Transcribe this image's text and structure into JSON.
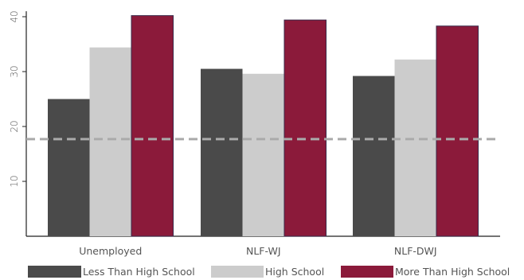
{
  "chart_data": {
    "type": "bar",
    "title": "",
    "xlabel": "",
    "ylabel": "",
    "categories": [
      "Unemployed",
      "NLF-WJ",
      "NLF-DWJ"
    ],
    "series": [
      {
        "name": "Less Than High School",
        "color": "#4a4a4a",
        "values": [
          25.0,
          30.5,
          29.2
        ]
      },
      {
        "name": "High School",
        "color": "#cccccc",
        "values": [
          34.4,
          29.6,
          32.2
        ]
      },
      {
        "name": "More Than High School",
        "color": "#8b1a3a",
        "values": [
          40.2,
          39.4,
          38.3
        ]
      }
    ],
    "yticks": [
      10,
      20,
      30,
      40
    ],
    "ylim": [
      0,
      41
    ],
    "reference_line": {
      "value": 17.7,
      "color": "#aaaaaa",
      "style": "dashed"
    },
    "legend_position": "bottom",
    "grid": false
  }
}
